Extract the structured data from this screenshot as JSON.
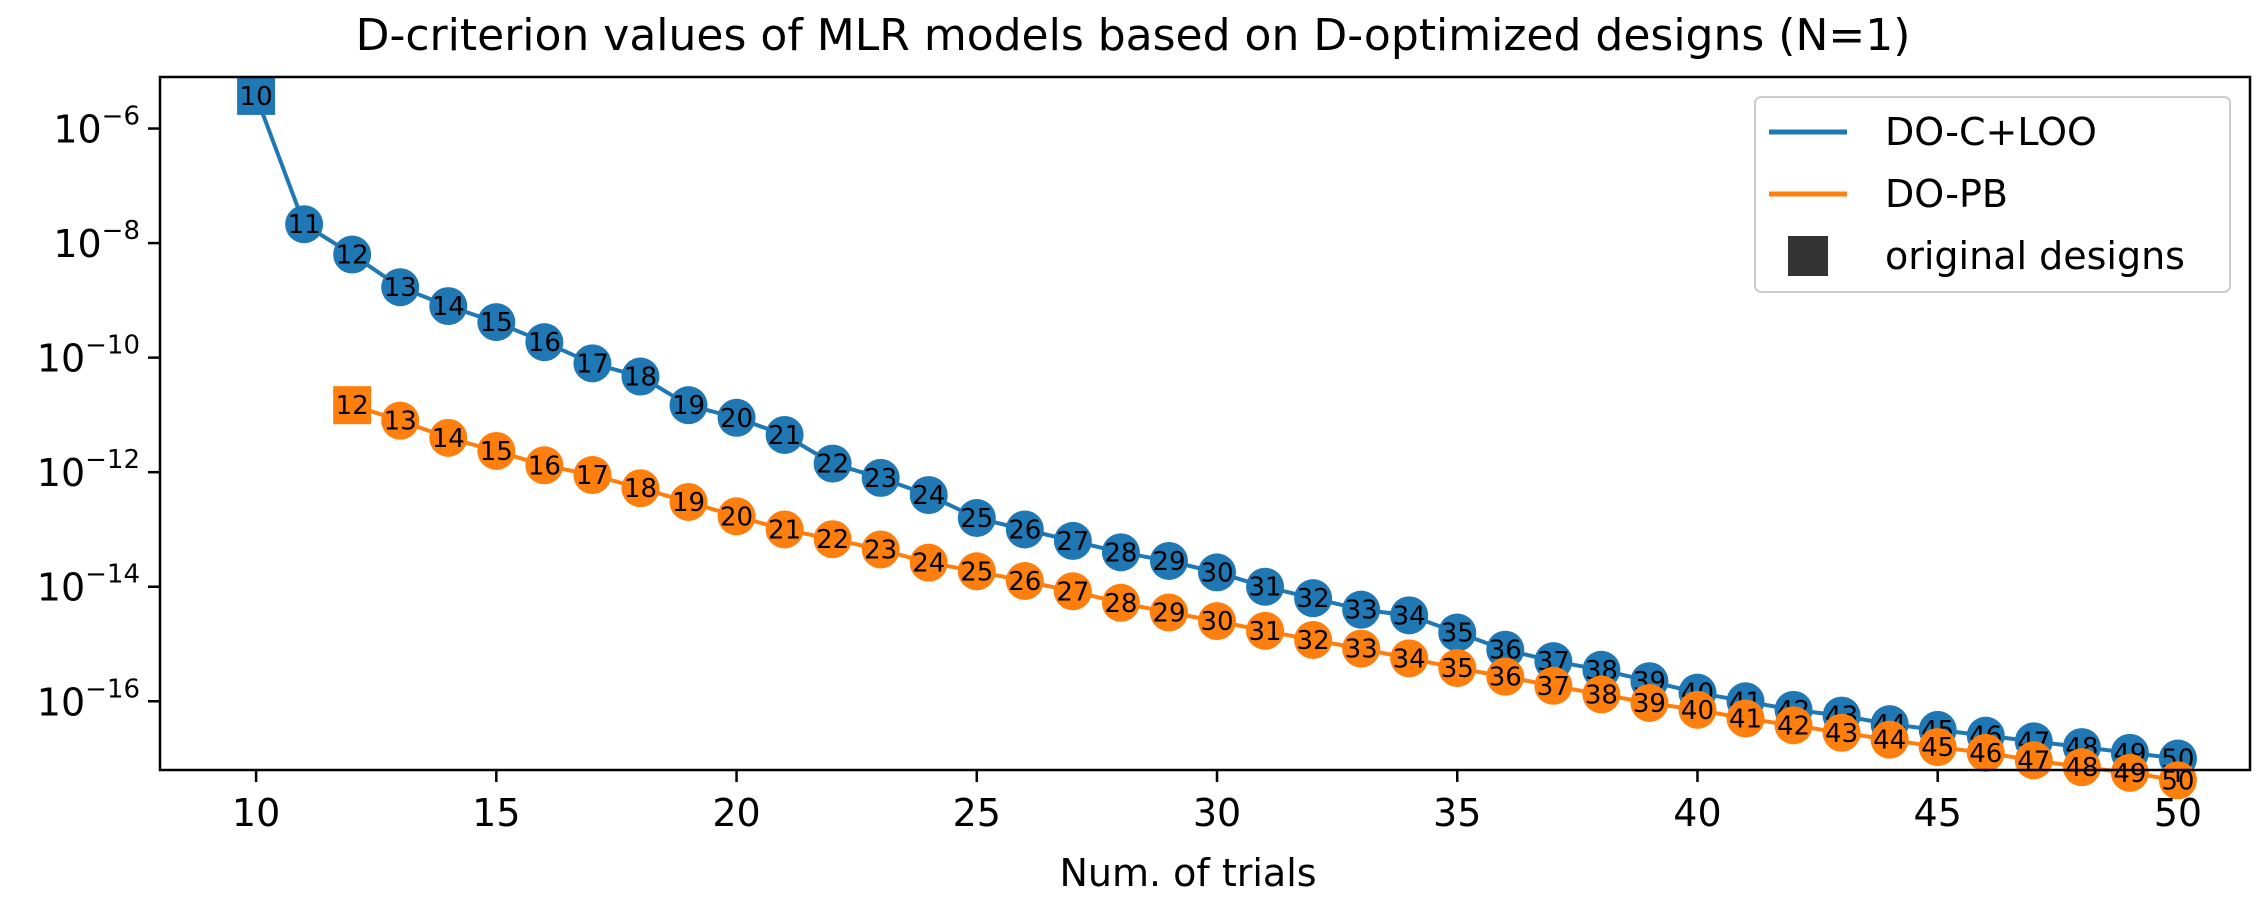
{
  "chart_data": {
    "type": "line",
    "title": "D-criterion values of MLR models based on D-optimized designs (N=1)",
    "xlabel": "Num. of trials",
    "ylabel": "",
    "xlim": [
      8,
      51.5
    ],
    "ylim_log10": [
      -17.2,
      -5.1
    ],
    "yscale": "log",
    "grid": false,
    "legend_position": "top-right",
    "x_ticks": [
      10,
      15,
      20,
      25,
      30,
      35,
      40,
      45,
      50
    ],
    "y_ticks": [
      {
        "base": "10",
        "exp": "−6",
        "log10": -6
      },
      {
        "base": "10",
        "exp": "−8",
        "log10": -8
      },
      {
        "base": "10",
        "exp": "−10",
        "log10": -10
      },
      {
        "base": "10",
        "exp": "−12",
        "log10": -12
      },
      {
        "base": "10",
        "exp": "−14",
        "log10": -14
      },
      {
        "base": "10",
        "exp": "−16",
        "log10": -16
      }
    ],
    "legend": [
      {
        "label": "DO-C+LOO",
        "kind": "line",
        "color": "#1f77b4"
      },
      {
        "label": "DO-PB",
        "kind": "line",
        "color": "#ff7f0e"
      },
      {
        "label": "original designs",
        "kind": "square",
        "color": "#333333"
      }
    ],
    "series": [
      {
        "name": "DO-C+LOO",
        "color": "#1f77b4",
        "original_design_x": 10,
        "x": [
          10,
          11,
          12,
          13,
          14,
          15,
          16,
          17,
          18,
          19,
          20,
          21,
          22,
          23,
          24,
          25,
          26,
          27,
          28,
          29,
          30,
          31,
          32,
          33,
          34,
          35,
          36,
          37,
          38,
          39,
          40,
          41,
          42,
          43,
          44,
          45,
          46,
          47,
          48,
          49,
          50
        ],
        "log10_y": [
          -5.43,
          -7.67,
          -8.2,
          -8.77,
          -9.1,
          -9.38,
          -9.73,
          -10.1,
          -10.33,
          -10.83,
          -11.05,
          -11.35,
          -11.85,
          -12.1,
          -12.4,
          -12.8,
          -13.0,
          -13.2,
          -13.4,
          -13.55,
          -13.75,
          -14.0,
          -14.2,
          -14.4,
          -14.5,
          -14.8,
          -15.1,
          -15.3,
          -15.45,
          -15.65,
          -15.85,
          -16.0,
          -16.15,
          -16.25,
          -16.4,
          -16.5,
          -16.6,
          -16.7,
          -16.8,
          -16.9,
          -17.0
        ]
      },
      {
        "name": "DO-PB",
        "color": "#ff7f0e",
        "original_design_x": 12,
        "x": [
          12,
          13,
          14,
          15,
          16,
          17,
          18,
          19,
          20,
          21,
          22,
          23,
          24,
          25,
          26,
          27,
          28,
          29,
          30,
          31,
          32,
          33,
          34,
          35,
          36,
          37,
          38,
          39,
          40,
          41,
          42,
          43,
          44,
          45,
          46,
          47,
          48,
          49,
          50
        ],
        "log10_y": [
          -10.83,
          -11.1,
          -11.4,
          -11.63,
          -11.88,
          -12.05,
          -12.28,
          -12.52,
          -12.77,
          -13.0,
          -13.17,
          -13.35,
          -13.58,
          -13.73,
          -13.9,
          -14.08,
          -14.28,
          -14.45,
          -14.6,
          -14.77,
          -14.93,
          -15.08,
          -15.25,
          -15.42,
          -15.57,
          -15.73,
          -15.88,
          -16.03,
          -16.15,
          -16.3,
          -16.42,
          -16.55,
          -16.67,
          -16.8,
          -16.9,
          -17.03,
          -17.15,
          -17.25,
          -17.38
        ]
      }
    ]
  }
}
